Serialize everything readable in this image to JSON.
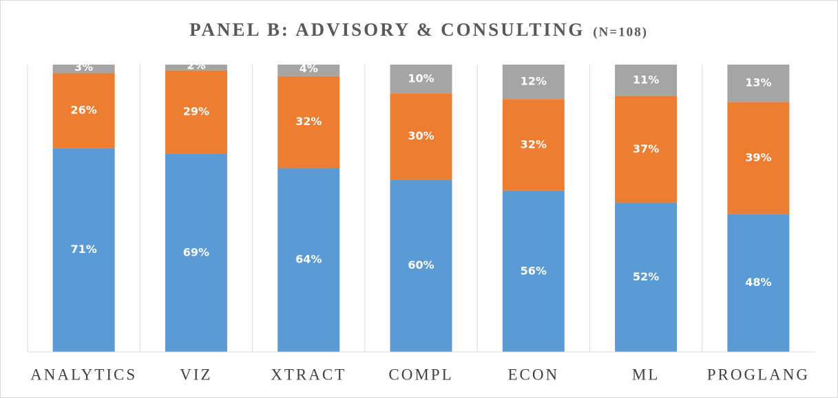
{
  "chart_data": {
    "type": "stacked_bar",
    "title": "PANEL B: ADVISORY & CONSULTING",
    "subtitle": "(N=108)",
    "categories": [
      "ANALYTICS",
      "VIZ",
      "XTRACT",
      "COMPL",
      "ECON",
      "ML",
      "PROGLANG"
    ],
    "series": [
      {
        "color": "#5b9bd5",
        "values": [
          71,
          69,
          64,
          60,
          56,
          52,
          48
        ],
        "value_labels": [
          "71%",
          "69%",
          "64%",
          "60%",
          "56%",
          "52%",
          "48%"
        ]
      },
      {
        "color": "#ed7d31",
        "values": [
          26,
          29,
          32,
          30,
          32,
          37,
          39
        ],
        "value_labels": [
          "26%",
          "29%",
          "32%",
          "30%",
          "32%",
          "37%",
          "39%"
        ]
      },
      {
        "color": "#a5a5a5",
        "values": [
          3,
          2,
          4,
          10,
          12,
          11,
          13
        ],
        "value_labels": [
          "3%",
          "2%",
          "4%",
          "10%",
          "12%",
          "11%",
          "13%"
        ]
      }
    ],
    "ylim": [
      0,
      100
    ]
  }
}
